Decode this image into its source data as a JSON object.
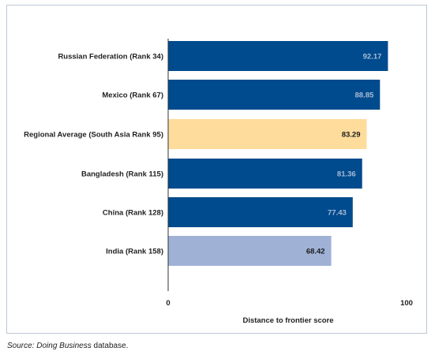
{
  "chart_data": {
    "type": "bar",
    "orientation": "horizontal",
    "categories": [
      "Russian Federation (Rank 34)",
      "Mexico (Rank 67)",
      "Regional Average (South Asia Rank 95)",
      "Bangladesh (Rank 115)",
      "China (Rank 128)",
      "India (Rank 158)"
    ],
    "values": [
      92.17,
      88.85,
      83.29,
      81.36,
      77.43,
      68.42
    ],
    "value_labels": [
      "92.17",
      "88.85",
      "83.29",
      "81.36",
      "77.43",
      "68.42"
    ],
    "bar_colors": [
      "#004b8d",
      "#004b8d",
      "#fedc9c",
      "#004b8d",
      "#004b8d",
      "#a0b1d6"
    ],
    "value_label_colors": [
      "#a8bcd8",
      "#a8bcd8",
      "#1a1a1a",
      "#a8bcd8",
      "#a8bcd8",
      "#1a1a1a"
    ],
    "xlabel": "Distance to frontier score",
    "xlim": [
      0,
      100
    ],
    "xticks": [
      "0",
      "100"
    ],
    "grid": false,
    "legend": "none"
  },
  "source": {
    "prefix": "Source: ",
    "name": "Doing Business",
    "suffix": " database."
  },
  "colors": {
    "frame_border": "#bcc8d6",
    "axis_line": "#333333"
  }
}
